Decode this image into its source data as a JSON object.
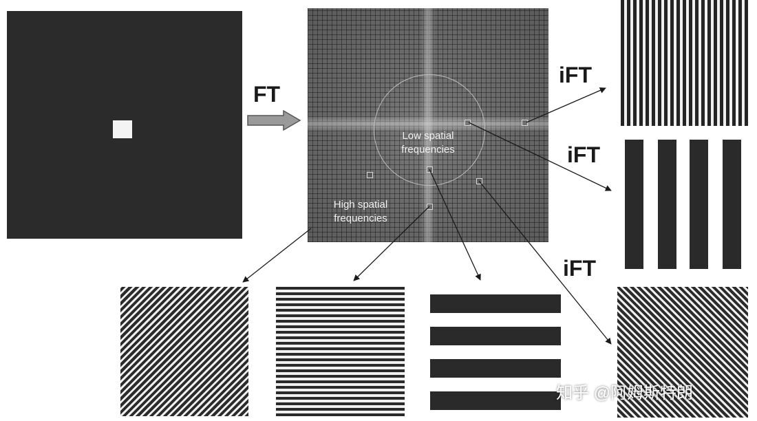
{
  "labels": {
    "ft": "FT",
    "ift_top": "iFT",
    "ift_middle": "iFT",
    "ift_bottom": "iFT"
  },
  "kspace": {
    "low_freq_label_line1": "Low spatial",
    "low_freq_label_line2": "frequencies",
    "high_freq_label_line1": "High spatial",
    "high_freq_label_line2": "frequencies"
  },
  "watermark": "知乎 @阿姆斯特朗",
  "colors": {
    "dark": "#2b2b2b",
    "stripe_light": "#f0f0f0",
    "arrow": "#1a1a1a",
    "kspace_gray": "#6e6e6e"
  },
  "icons": {
    "big_arrow": "block-arrow-right"
  }
}
